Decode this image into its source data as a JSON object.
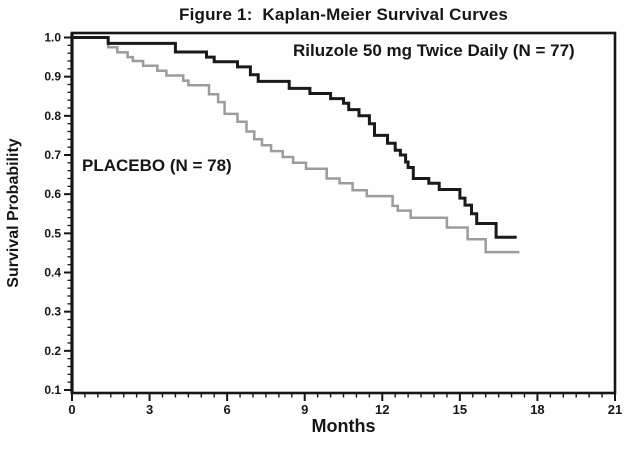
{
  "figure": {
    "title": "Figure 1:  Kaplan-Meier Survival Curves"
  },
  "chart_data": {
    "type": "line",
    "subtype": "kaplan-meier-step",
    "title": "Figure 1:  Kaplan-Meier Survival Curves",
    "xlabel": "Months",
    "ylabel": "Survival Probability",
    "xlim": [
      0,
      21
    ],
    "ylim": [
      0.1,
      1.0
    ],
    "x_major_ticks": [
      0,
      3,
      6,
      9,
      12,
      15,
      18,
      21
    ],
    "x_minor_interval": 0.5,
    "y_major_ticks": [
      1.0,
      0.9,
      0.8,
      0.7,
      0.6,
      0.5,
      0.4,
      0.3,
      0.2,
      0.1
    ],
    "y_minor_interval": 0.02,
    "grid": false,
    "legend_position": "labels-inside-plot",
    "frame": "full-box",
    "series": [
      {
        "key": "placebo",
        "label": "PLACEBO (N = 78)",
        "n": 78,
        "color": "#9c9c9c",
        "line_width": 2.5,
        "points": [
          [
            0,
            1.0
          ],
          [
            1.4,
            0.975
          ],
          [
            1.75,
            0.962
          ],
          [
            2.15,
            0.95
          ],
          [
            2.35,
            0.94
          ],
          [
            2.75,
            0.928
          ],
          [
            3.3,
            0.915
          ],
          [
            3.65,
            0.903
          ],
          [
            4.3,
            0.89
          ],
          [
            4.5,
            0.878
          ],
          [
            5.3,
            0.855
          ],
          [
            5.65,
            0.835
          ],
          [
            5.9,
            0.805
          ],
          [
            6.4,
            0.785
          ],
          [
            6.75,
            0.76
          ],
          [
            7.05,
            0.74
          ],
          [
            7.35,
            0.725
          ],
          [
            7.7,
            0.71
          ],
          [
            8.15,
            0.695
          ],
          [
            8.55,
            0.68
          ],
          [
            9.05,
            0.665
          ],
          [
            9.85,
            0.64
          ],
          [
            10.35,
            0.628
          ],
          [
            10.85,
            0.61
          ],
          [
            11.4,
            0.595
          ],
          [
            12.4,
            0.57
          ],
          [
            12.6,
            0.558
          ],
          [
            13.1,
            0.54
          ],
          [
            14.5,
            0.515
          ],
          [
            15.3,
            0.485
          ],
          [
            16.0,
            0.452
          ],
          [
            17.3,
            0.452
          ]
        ]
      },
      {
        "key": "riluzole",
        "label": "Riluzole 50 mg Twice Daily (N = 77)",
        "n": 77,
        "color": "#1a1a1a",
        "line_width": 3,
        "points": [
          [
            0,
            1.0
          ],
          [
            1.4,
            0.985
          ],
          [
            4.0,
            0.963
          ],
          [
            5.2,
            0.95
          ],
          [
            5.5,
            0.938
          ],
          [
            6.4,
            0.925
          ],
          [
            6.9,
            0.905
          ],
          [
            7.2,
            0.888
          ],
          [
            8.4,
            0.87
          ],
          [
            9.2,
            0.857
          ],
          [
            10.0,
            0.844
          ],
          [
            10.5,
            0.832
          ],
          [
            10.7,
            0.816
          ],
          [
            11.1,
            0.8
          ],
          [
            11.5,
            0.78
          ],
          [
            11.7,
            0.75
          ],
          [
            12.2,
            0.73
          ],
          [
            12.5,
            0.712
          ],
          [
            12.7,
            0.7
          ],
          [
            12.9,
            0.682
          ],
          [
            13.0,
            0.668
          ],
          [
            13.2,
            0.64
          ],
          [
            13.8,
            0.628
          ],
          [
            14.2,
            0.612
          ],
          [
            15.0,
            0.59
          ],
          [
            15.2,
            0.572
          ],
          [
            15.45,
            0.55
          ],
          [
            15.65,
            0.525
          ],
          [
            16.4,
            0.49
          ],
          [
            17.2,
            0.49
          ]
        ]
      }
    ],
    "axis_color": "#161616",
    "background_color": "#fefefe"
  }
}
